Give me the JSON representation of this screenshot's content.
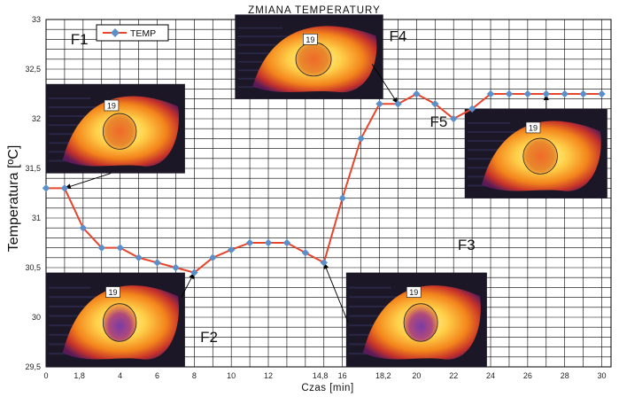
{
  "chart_data": {
    "type": "line",
    "title": "ZMIANA TEMPERATURY",
    "xlabel": "Czas [min]",
    "ylabel": "Temperatura [ºC]",
    "xlim": [
      0,
      30.5
    ],
    "ylim": [
      29.5,
      33
    ],
    "x_ticks": [
      "0",
      "1,8",
      "4",
      "6",
      "8",
      "10",
      "12",
      "14,8",
      "16",
      "18,2",
      "20",
      "22",
      "24",
      "26",
      "28",
      "30"
    ],
    "x_tick_values": [
      0,
      1.8,
      4,
      6,
      8,
      10,
      12,
      14.8,
      16,
      18.2,
      20,
      22,
      24,
      26,
      28,
      30
    ],
    "y_ticks": [
      "29,5",
      "30",
      "30,5",
      "31",
      "31,5",
      "32",
      "32,5",
      "33"
    ],
    "y_tick_values": [
      29.5,
      30,
      30.5,
      31,
      31.5,
      32,
      32.5,
      33
    ],
    "grid": true,
    "legend": {
      "position": "top-left",
      "entries": [
        "TEMP"
      ]
    },
    "colors": {
      "line": "#e8452c",
      "marker": "#5b8fc9",
      "grid": "#000000"
    },
    "series": [
      {
        "name": "TEMP",
        "x": [
          0,
          1,
          2,
          3,
          4,
          5,
          6,
          7,
          8,
          9,
          10,
          11,
          12,
          13,
          14,
          15,
          16,
          17,
          18,
          19,
          20,
          21,
          22,
          23,
          24,
          25,
          26,
          27,
          28,
          29,
          30
        ],
        "y": [
          31.3,
          31.3,
          30.9,
          30.7,
          30.7,
          30.6,
          30.55,
          30.5,
          30.45,
          30.6,
          30.68,
          30.75,
          30.75,
          30.75,
          30.65,
          30.55,
          31.2,
          31.8,
          32.15,
          32.15,
          32.25,
          32.15,
          32.0,
          32.1,
          32.25,
          32.25,
          32.25,
          32.25,
          32.25,
          32.25,
          32.25
        ]
      }
    ],
    "annotations": [
      {
        "label": "F1",
        "image_label": "19",
        "points_to_x": 1.0,
        "points_to_y": 31.3
      },
      {
        "label": "F2",
        "image_label": "19",
        "points_to_x": 8.0,
        "points_to_y": 30.45
      },
      {
        "label": "F3",
        "image_label": "19",
        "points_to_x": 15.0,
        "points_to_y": 30.55
      },
      {
        "label": "F4",
        "image_label": "19",
        "points_to_x": 19.0,
        "points_to_y": 32.15
      },
      {
        "label": "F5",
        "image_label": "19",
        "points_to_x": 27.0,
        "points_to_y": 32.25
      }
    ]
  }
}
